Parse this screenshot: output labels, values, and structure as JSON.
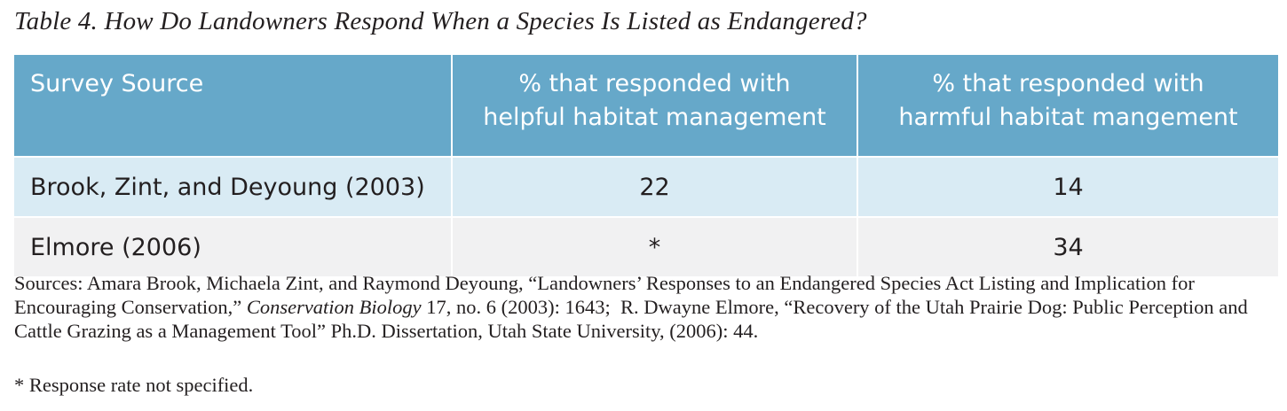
{
  "caption": "Table 4. How Do Landowners Respond When a Species Is Listed as Endangered?",
  "table": {
    "headers": [
      {
        "lines": [
          "Survey Source"
        ]
      },
      {
        "lines": [
          "% that responded with",
          "helpful habitat management"
        ]
      },
      {
        "lines": [
          "% that responded with",
          "harmful habitat mangement"
        ]
      }
    ],
    "rows": [
      [
        "Brook, Zint, and Deyoung (2003)",
        "22",
        "14"
      ],
      [
        "Elmore (2006)",
        "*",
        "34"
      ]
    ]
  },
  "sources": {
    "part1": "Sources: Amara Brook, Michaela Zint, and Raymond Deyoung, “Landowners’ Responses to an Endangered Species Act Listing and Implication for Encouraging Conservation,” ",
    "journal": "Conservation Biology",
    "part2": " 17, no. 6 (2003): 1643;  R. Dwayne Elmore, “Recovery of the Utah Prairie Dog: Public Perception and Cattle Grazing as a Management Tool” Ph.D. Dissertation, Utah State University, (2006): 44."
  },
  "footnote": "* Response rate not specified.",
  "colors": {
    "header_bg": "#66a8c9",
    "row1_bg": "#d9ebf4",
    "row2_bg": "#f1f1f2",
    "text": "#231f20"
  }
}
